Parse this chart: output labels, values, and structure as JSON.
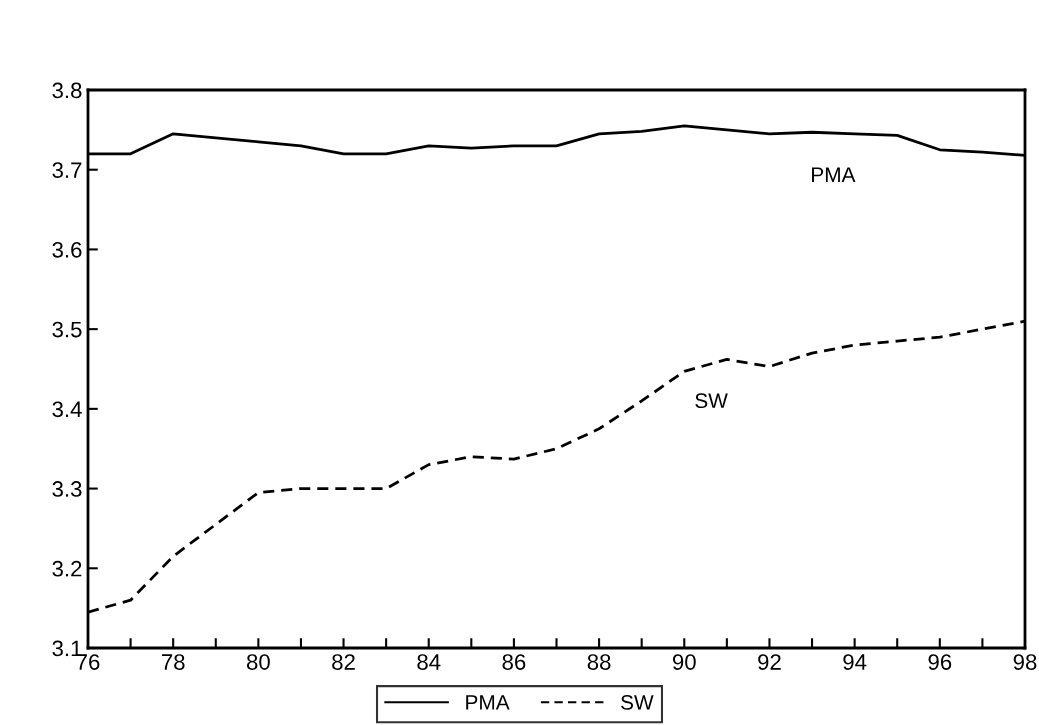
{
  "chart_data": {
    "type": "line",
    "x": [
      76,
      77,
      78,
      79,
      80,
      81,
      82,
      83,
      84,
      85,
      86,
      87,
      88,
      89,
      90,
      91,
      92,
      93,
      94,
      95,
      96,
      97,
      98
    ],
    "series": [
      {
        "name": "PMA",
        "color": "#000000",
        "line_style": "solid",
        "values": [
          3.72,
          3.72,
          3.745,
          3.74,
          3.735,
          3.73,
          3.72,
          3.72,
          3.73,
          3.727,
          3.73,
          3.73,
          3.745,
          3.748,
          3.755,
          3.75,
          3.745,
          3.747,
          3.745,
          3.743,
          3.725,
          3.722,
          3.718
        ]
      },
      {
        "name": "SW",
        "color": "#000000",
        "line_style": "dashed",
        "values": [
          3.145,
          3.16,
          3.215,
          3.255,
          3.295,
          3.3,
          3.3,
          3.3,
          3.33,
          3.34,
          3.337,
          3.35,
          3.375,
          3.41,
          3.447,
          3.462,
          3.453,
          3.47,
          3.48,
          3.485,
          3.49,
          3.5,
          3.51
        ]
      }
    ],
    "annotations": [
      "PMA",
      "SW"
    ],
    "xlim": [
      76,
      98
    ],
    "xticks": [
      76,
      {
        "value": 77,
        "label": null
      },
      78,
      {
        "value": 79,
        "label": null
      },
      80,
      {
        "value": 81,
        "label": null
      },
      82,
      {
        "value": 83,
        "label": null
      },
      84,
      {
        "value": 85,
        "label": null
      },
      86,
      {
        "value": 87,
        "label": null
      },
      88,
      {
        "value": 89,
        "label": null
      },
      90,
      {
        "value": 91,
        "label": null
      },
      92,
      {
        "value": 93,
        "label": null
      },
      94,
      {
        "value": 95,
        "label": null
      },
      96,
      {
        "value": 97,
        "label": null
      },
      98
    ],
    "ylim": [
      3.1,
      3.8
    ],
    "yticks": [
      3.1,
      3.2,
      3.3,
      3.4,
      3.5,
      3.6,
      3.7,
      3.8
    ],
    "grid": false,
    "legend": "bottom",
    "marker": "none"
  }
}
